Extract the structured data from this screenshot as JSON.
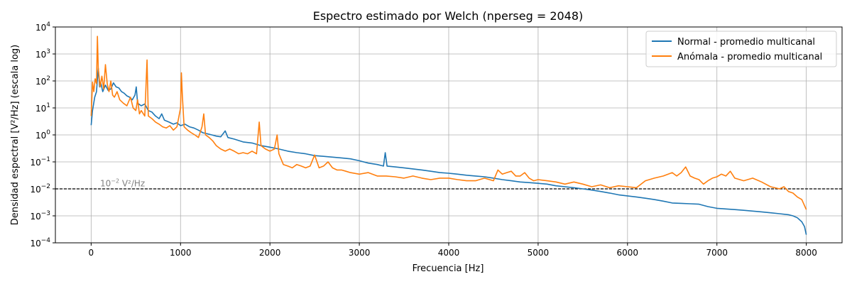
{
  "chart_data": {
    "type": "line",
    "title": "Espectro estimado por Welch (nperseg = 2048)",
    "xlabel": "Frecuencia [Hz]",
    "ylabel": "Densidad espectral [V²/Hz] (escala log)",
    "xlim": [
      -400,
      8400
    ],
    "ylim": [
      0.0001,
      10000
    ],
    "yscale": "log",
    "grid": true,
    "legend_position": "top-right",
    "xticks": [
      0,
      1000,
      2000,
      3000,
      4000,
      5000,
      6000,
      7000,
      8000
    ],
    "yticks": [
      {
        "value": 0.0001,
        "base": "10",
        "exp": "−4"
      },
      {
        "value": 0.001,
        "base": "10",
        "exp": "−3"
      },
      {
        "value": 0.01,
        "base": "10",
        "exp": "−2"
      },
      {
        "value": 0.1,
        "base": "10",
        "exp": "−1"
      },
      {
        "value": 1,
        "base": "10",
        "exp": "0"
      },
      {
        "value": 10,
        "base": "10",
        "exp": "1"
      },
      {
        "value": 100,
        "base": "10",
        "exp": "2"
      },
      {
        "value": 1000,
        "base": "10",
        "exp": "3"
      },
      {
        "value": 10000,
        "base": "10",
        "exp": "4"
      }
    ],
    "reference_line": {
      "value": 0.01,
      "color": "#000000",
      "style": "dashed"
    },
    "annotation": {
      "base": "10",
      "exp": "−2",
      "unit": " V²/Hz",
      "x": 100,
      "y": 0.0125
    },
    "series": [
      {
        "name": "Normal - promedio multicanal",
        "color": "#1f77b4",
        "points": [
          [
            0,
            2.3
          ],
          [
            15,
            8
          ],
          [
            40,
            25
          ],
          [
            60,
            40
          ],
          [
            80,
            300
          ],
          [
            95,
            60
          ],
          [
            110,
            80
          ],
          [
            130,
            40
          ],
          [
            160,
            70
          ],
          [
            190,
            45
          ],
          [
            220,
            50
          ],
          [
            250,
            85
          ],
          [
            280,
            60
          ],
          [
            310,
            55
          ],
          [
            340,
            40
          ],
          [
            370,
            35
          ],
          [
            400,
            28
          ],
          [
            430,
            25
          ],
          [
            460,
            20
          ],
          [
            490,
            30
          ],
          [
            505,
            60
          ],
          [
            520,
            15
          ],
          [
            560,
            12
          ],
          [
            600,
            14
          ],
          [
            640,
            8
          ],
          [
            680,
            7
          ],
          [
            720,
            5
          ],
          [
            760,
            4
          ],
          [
            790,
            6
          ],
          [
            820,
            3.5
          ],
          [
            870,
            3
          ],
          [
            920,
            2.5
          ],
          [
            960,
            2.8
          ],
          [
            1000,
            2.2
          ],
          [
            1050,
            2.5
          ],
          [
            1100,
            2
          ],
          [
            1150,
            1.8
          ],
          [
            1200,
            1.5
          ],
          [
            1250,
            1.2
          ],
          [
            1300,
            1.1
          ],
          [
            1350,
            1
          ],
          [
            1400,
            0.9
          ],
          [
            1450,
            0.85
          ],
          [
            1500,
            1.4
          ],
          [
            1530,
            0.8
          ],
          [
            1600,
            0.7
          ],
          [
            1700,
            0.55
          ],
          [
            1800,
            0.5
          ],
          [
            1900,
            0.4
          ],
          [
            2000,
            0.35
          ],
          [
            2100,
            0.3
          ],
          [
            2200,
            0.25
          ],
          [
            2300,
            0.22
          ],
          [
            2400,
            0.2
          ],
          [
            2500,
            0.17
          ],
          [
            2600,
            0.16
          ],
          [
            2700,
            0.15
          ],
          [
            2800,
            0.14
          ],
          [
            2900,
            0.13
          ],
          [
            3000,
            0.11
          ],
          [
            3100,
            0.09
          ],
          [
            3200,
            0.08
          ],
          [
            3270,
            0.07
          ],
          [
            3290,
            0.22
          ],
          [
            3310,
            0.07
          ],
          [
            3400,
            0.065
          ],
          [
            3500,
            0.06
          ],
          [
            3600,
            0.055
          ],
          [
            3700,
            0.05
          ],
          [
            3800,
            0.045
          ],
          [
            3900,
            0.04
          ],
          [
            4000,
            0.038
          ],
          [
            4100,
            0.035
          ],
          [
            4200,
            0.032
          ],
          [
            4300,
            0.03
          ],
          [
            4400,
            0.028
          ],
          [
            4500,
            0.025
          ],
          [
            4600,
            0.022
          ],
          [
            4700,
            0.02
          ],
          [
            4800,
            0.018
          ],
          [
            4900,
            0.017
          ],
          [
            5000,
            0.016
          ],
          [
            5100,
            0.015
          ],
          [
            5200,
            0.013
          ],
          [
            5300,
            0.012
          ],
          [
            5400,
            0.011
          ],
          [
            5500,
            0.01
          ],
          [
            5600,
            0.009
          ],
          [
            5700,
            0.008
          ],
          [
            5800,
            0.007
          ],
          [
            5900,
            0.006
          ],
          [
            6000,
            0.0055
          ],
          [
            6100,
            0.005
          ],
          [
            6200,
            0.0045
          ],
          [
            6300,
            0.004
          ],
          [
            6400,
            0.0035
          ],
          [
            6500,
            0.003
          ],
          [
            6600,
            0.0029
          ],
          [
            6700,
            0.0028
          ],
          [
            6800,
            0.0027
          ],
          [
            6900,
            0.0022
          ],
          [
            7000,
            0.0019
          ],
          [
            7100,
            0.0018
          ],
          [
            7200,
            0.0017
          ],
          [
            7300,
            0.0016
          ],
          [
            7400,
            0.0015
          ],
          [
            7500,
            0.0014
          ],
          [
            7600,
            0.0013
          ],
          [
            7700,
            0.0012
          ],
          [
            7800,
            0.0011
          ],
          [
            7850,
            0.001
          ],
          [
            7900,
            0.00085
          ],
          [
            7950,
            0.0006
          ],
          [
            7980,
            0.0004
          ],
          [
            8000,
            0.0002
          ]
        ]
      },
      {
        "name": "Anómala - promedio multicanal",
        "color": "#ff7f0e",
        "points": [
          [
            0,
            5
          ],
          [
            15,
            90
          ],
          [
            30,
            40
          ],
          [
            45,
            120
          ],
          [
            60,
            80
          ],
          [
            70,
            4500
          ],
          [
            80,
            300
          ],
          [
            100,
            60
          ],
          [
            120,
            150
          ],
          [
            140,
            50
          ],
          [
            160,
            400
          ],
          [
            180,
            80
          ],
          [
            200,
            40
          ],
          [
            220,
            100
          ],
          [
            240,
            30
          ],
          [
            260,
            25
          ],
          [
            290,
            40
          ],
          [
            320,
            20
          ],
          [
            360,
            15
          ],
          [
            400,
            12
          ],
          [
            440,
            25
          ],
          [
            470,
            10
          ],
          [
            500,
            8
          ],
          [
            520,
            20
          ],
          [
            540,
            6
          ],
          [
            560,
            8
          ],
          [
            600,
            5
          ],
          [
            625,
            600
          ],
          [
            640,
            5
          ],
          [
            680,
            4
          ],
          [
            720,
            3
          ],
          [
            760,
            2.5
          ],
          [
            800,
            2
          ],
          [
            840,
            1.8
          ],
          [
            880,
            2.2
          ],
          [
            920,
            1.5
          ],
          [
            960,
            2
          ],
          [
            1000,
            10
          ],
          [
            1010,
            200
          ],
          [
            1020,
            30
          ],
          [
            1040,
            2
          ],
          [
            1080,
            1.5
          ],
          [
            1120,
            1.2
          ],
          [
            1160,
            1
          ],
          [
            1200,
            0.8
          ],
          [
            1240,
            2
          ],
          [
            1260,
            6
          ],
          [
            1280,
            1
          ],
          [
            1320,
            0.8
          ],
          [
            1360,
            0.6
          ],
          [
            1400,
            0.4
          ],
          [
            1450,
            0.3
          ],
          [
            1500,
            0.25
          ],
          [
            1550,
            0.3
          ],
          [
            1600,
            0.25
          ],
          [
            1650,
            0.2
          ],
          [
            1700,
            0.22
          ],
          [
            1750,
            0.2
          ],
          [
            1800,
            0.25
          ],
          [
            1850,
            0.2
          ],
          [
            1880,
            3
          ],
          [
            1900,
            0.4
          ],
          [
            1950,
            0.3
          ],
          [
            2000,
            0.25
          ],
          [
            2050,
            0.3
          ],
          [
            2080,
            1
          ],
          [
            2100,
            0.2
          ],
          [
            2150,
            0.08
          ],
          [
            2200,
            0.07
          ],
          [
            2250,
            0.06
          ],
          [
            2300,
            0.08
          ],
          [
            2350,
            0.07
          ],
          [
            2400,
            0.06
          ],
          [
            2450,
            0.07
          ],
          [
            2500,
            0.18
          ],
          [
            2550,
            0.06
          ],
          [
            2600,
            0.07
          ],
          [
            2650,
            0.1
          ],
          [
            2700,
            0.06
          ],
          [
            2750,
            0.05
          ],
          [
            2800,
            0.05
          ],
          [
            2850,
            0.045
          ],
          [
            2900,
            0.04
          ],
          [
            3000,
            0.035
          ],
          [
            3100,
            0.04
          ],
          [
            3200,
            0.03
          ],
          [
            3300,
            0.03
          ],
          [
            3400,
            0.028
          ],
          [
            3500,
            0.025
          ],
          [
            3600,
            0.03
          ],
          [
            3700,
            0.025
          ],
          [
            3800,
            0.022
          ],
          [
            3900,
            0.025
          ],
          [
            4000,
            0.025
          ],
          [
            4100,
            0.022
          ],
          [
            4200,
            0.02
          ],
          [
            4300,
            0.02
          ],
          [
            4400,
            0.025
          ],
          [
            4500,
            0.02
          ],
          [
            4550,
            0.05
          ],
          [
            4600,
            0.035
          ],
          [
            4650,
            0.04
          ],
          [
            4700,
            0.045
          ],
          [
            4750,
            0.03
          ],
          [
            4800,
            0.03
          ],
          [
            4850,
            0.04
          ],
          [
            4900,
            0.025
          ],
          [
            4950,
            0.02
          ],
          [
            5000,
            0.022
          ],
          [
            5100,
            0.02
          ],
          [
            5200,
            0.018
          ],
          [
            5300,
            0.015
          ],
          [
            5400,
            0.018
          ],
          [
            5500,
            0.015
          ],
          [
            5600,
            0.012
          ],
          [
            5700,
            0.014
          ],
          [
            5800,
            0.011
          ],
          [
            5900,
            0.013
          ],
          [
            6000,
            0.012
          ],
          [
            6100,
            0.011
          ],
          [
            6200,
            0.02
          ],
          [
            6300,
            0.025
          ],
          [
            6400,
            0.03
          ],
          [
            6500,
            0.04
          ],
          [
            6550,
            0.03
          ],
          [
            6600,
            0.04
          ],
          [
            6650,
            0.065
          ],
          [
            6700,
            0.03
          ],
          [
            6750,
            0.025
          ],
          [
            6800,
            0.022
          ],
          [
            6850,
            0.015
          ],
          [
            6900,
            0.02
          ],
          [
            6950,
            0.025
          ],
          [
            7000,
            0.028
          ],
          [
            7050,
            0.035
          ],
          [
            7100,
            0.03
          ],
          [
            7150,
            0.045
          ],
          [
            7200,
            0.025
          ],
          [
            7300,
            0.02
          ],
          [
            7400,
            0.025
          ],
          [
            7500,
            0.018
          ],
          [
            7600,
            0.012
          ],
          [
            7700,
            0.01
          ],
          [
            7750,
            0.012
          ],
          [
            7800,
            0.008
          ],
          [
            7850,
            0.007
          ],
          [
            7900,
            0.005
          ],
          [
            7950,
            0.004
          ],
          [
            8000,
            0.0017
          ]
        ]
      }
    ]
  }
}
